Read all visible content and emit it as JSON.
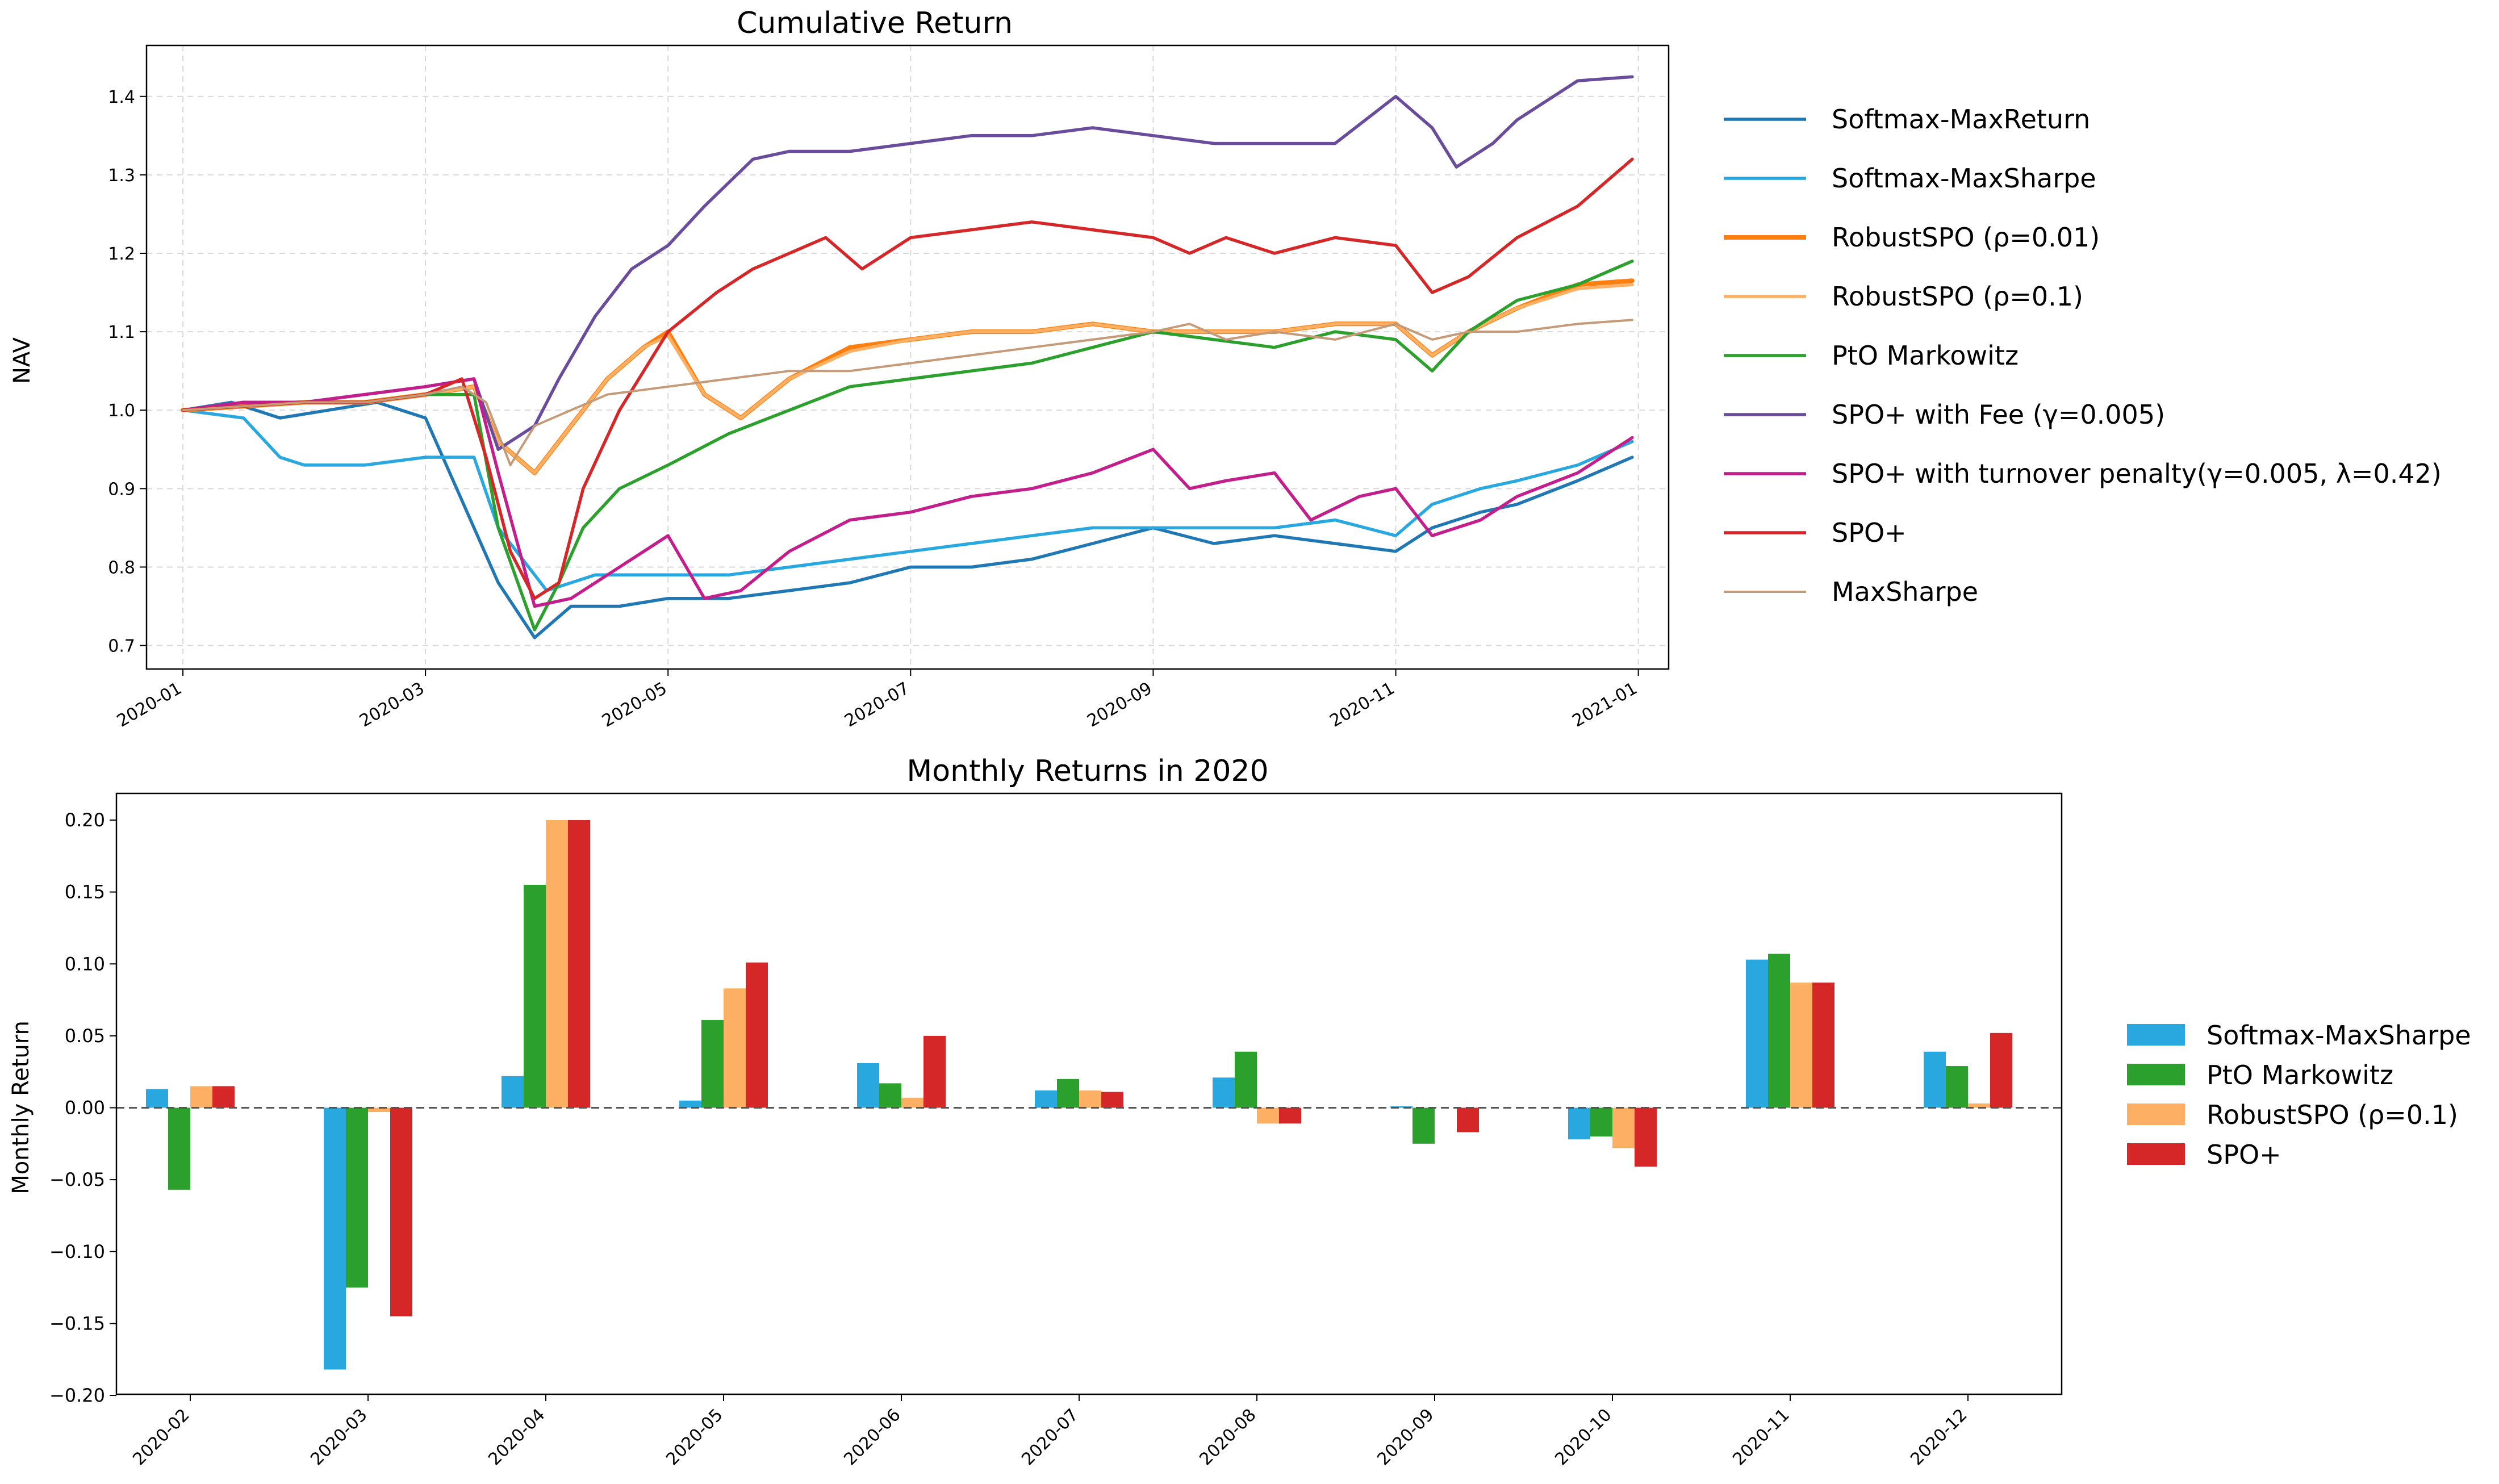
{
  "colors": {
    "softmax_maxreturn": "#1f77b4",
    "softmax_maxsharpe": "#29a8e0",
    "robust_001": "#ff7f0e",
    "robust_01": "#fdb063",
    "pto_markowitz": "#2ca02c",
    "spo_fee": "#6a4c9c",
    "spo_turnover": "#c21e8c",
    "spo_plus": "#d62728",
    "maxsharpe": "#c49a78",
    "bar_softmax": "#29a8e0",
    "bar_pto": "#2ca02c",
    "bar_robust": "#fdb063",
    "bar_spo": "#d62728"
  },
  "chart_data": [
    {
      "type": "line",
      "title": "Cumulative Return",
      "xlabel": "",
      "ylabel": "NAV",
      "xlim": [
        -0.3,
        12.25
      ],
      "ylim": [
        0.67,
        1.465
      ],
      "x_ticks": [
        0,
        2,
        4,
        6,
        8,
        10,
        12
      ],
      "x_tick_labels": [
        "2020-01",
        "2020-03",
        "2020-05",
        "2020-07",
        "2020-09",
        "2020-11",
        "2021-01"
      ],
      "y_ticks": [
        0.7,
        0.8,
        0.9,
        1.0,
        1.1,
        1.2,
        1.3,
        1.4
      ],
      "y_tick_labels": [
        "0.7",
        "0.8",
        "0.9",
        "1.0",
        "1.1",
        "1.2",
        "1.3",
        "1.4"
      ],
      "grid": true,
      "legend_position": "outside-right",
      "x_unit": "months since 2020-01-01",
      "series": [
        {
          "name": "Softmax-MaxReturn",
          "color_key": "softmax_maxreturn",
          "width": "normal",
          "x": [
            0,
            0.4,
            0.8,
            1.2,
            1.6,
            2.0,
            2.4,
            2.6,
            2.9,
            3.2,
            3.6,
            4.0,
            4.5,
            5.0,
            5.5,
            6.0,
            6.5,
            7.0,
            7.5,
            8.0,
            8.5,
            9.0,
            9.5,
            10.0,
            10.3,
            10.7,
            11.0,
            11.5,
            11.95
          ],
          "y": [
            1.0,
            1.01,
            0.99,
            1.0,
            1.01,
            0.99,
            0.85,
            0.78,
            0.71,
            0.75,
            0.75,
            0.76,
            0.76,
            0.77,
            0.78,
            0.8,
            0.8,
            0.81,
            0.83,
            0.85,
            0.83,
            0.84,
            0.83,
            0.82,
            0.85,
            0.87,
            0.88,
            0.91,
            0.94
          ]
        },
        {
          "name": "Softmax-MaxSharpe",
          "color_key": "softmax_maxsharpe",
          "width": "normal",
          "x": [
            0,
            0.5,
            0.8,
            1.0,
            1.5,
            2.0,
            2.4,
            2.6,
            3.0,
            3.4,
            4.0,
            4.5,
            5.0,
            5.5,
            6.0,
            6.5,
            7.0,
            7.5,
            8.0,
            8.5,
            9.0,
            9.5,
            10.0,
            10.3,
            10.7,
            11.0,
            11.5,
            11.95
          ],
          "y": [
            1.0,
            0.99,
            0.94,
            0.93,
            0.93,
            0.94,
            0.94,
            0.85,
            0.77,
            0.79,
            0.79,
            0.79,
            0.8,
            0.81,
            0.82,
            0.83,
            0.84,
            0.85,
            0.85,
            0.85,
            0.85,
            0.86,
            0.84,
            0.88,
            0.9,
            0.91,
            0.93,
            0.96
          ]
        },
        {
          "name": "RobustSPO (ρ=0.01)",
          "color_key": "robust_001",
          "width": "thick",
          "x": [
            0,
            0.5,
            1.0,
            1.5,
            2.0,
            2.4,
            2.6,
            2.9,
            3.2,
            3.5,
            3.8,
            4.0,
            4.3,
            4.6,
            5.0,
            5.5,
            6.0,
            6.5,
            7.0,
            7.5,
            8.0,
            8.5,
            9.0,
            9.5,
            10.0,
            10.3,
            10.6,
            11.0,
            11.5,
            11.95
          ],
          "y": [
            1.0,
            1.005,
            1.01,
            1.01,
            1.02,
            1.03,
            0.96,
            0.92,
            0.98,
            1.04,
            1.08,
            1.1,
            1.02,
            0.99,
            1.04,
            1.08,
            1.09,
            1.1,
            1.1,
            1.11,
            1.1,
            1.1,
            1.1,
            1.11,
            1.11,
            1.07,
            1.1,
            1.13,
            1.16,
            1.165
          ]
        },
        {
          "name": "RobustSPO (ρ=0.1)",
          "color_key": "robust_01",
          "width": "normal",
          "x": [
            0,
            0.5,
            1.0,
            1.5,
            2.0,
            2.4,
            2.6,
            2.9,
            3.2,
            3.5,
            3.8,
            4.0,
            4.3,
            4.6,
            5.0,
            5.5,
            6.0,
            6.5,
            7.0,
            7.5,
            8.0,
            8.5,
            9.0,
            9.5,
            10.0,
            10.3,
            10.6,
            11.0,
            11.5,
            11.95
          ],
          "y": [
            1.0,
            1.005,
            1.01,
            1.01,
            1.02,
            1.03,
            0.96,
            0.92,
            0.98,
            1.04,
            1.08,
            1.095,
            1.02,
            0.99,
            1.04,
            1.075,
            1.09,
            1.1,
            1.1,
            1.11,
            1.1,
            1.1,
            1.1,
            1.11,
            1.11,
            1.07,
            1.1,
            1.13,
            1.155,
            1.16
          ]
        },
        {
          "name": "PtO Markowitz",
          "color_key": "pto_markowitz",
          "width": "normal",
          "x": [
            0,
            0.5,
            1.0,
            1.5,
            2.0,
            2.4,
            2.6,
            2.9,
            3.1,
            3.3,
            3.6,
            4.0,
            4.5,
            5.0,
            5.5,
            6.0,
            6.5,
            7.0,
            7.5,
            8.0,
            8.5,
            9.0,
            9.5,
            10.0,
            10.3,
            10.6,
            11.0,
            11.5,
            11.95
          ],
          "y": [
            1.0,
            1.01,
            1.01,
            1.01,
            1.02,
            1.02,
            0.85,
            0.72,
            0.78,
            0.85,
            0.9,
            0.93,
            0.97,
            1.0,
            1.03,
            1.04,
            1.05,
            1.06,
            1.08,
            1.1,
            1.09,
            1.08,
            1.1,
            1.09,
            1.05,
            1.1,
            1.14,
            1.16,
            1.19
          ]
        },
        {
          "name": "SPO+ with Fee (γ=0.005)",
          "color_key": "spo_fee",
          "width": "normal",
          "x": [
            0,
            0.5,
            1.0,
            1.5,
            2.0,
            2.4,
            2.6,
            2.9,
            3.1,
            3.4,
            3.7,
            4.0,
            4.3,
            4.7,
            5.0,
            5.5,
            6.0,
            6.5,
            7.0,
            7.5,
            8.0,
            8.5,
            9.0,
            9.5,
            10.0,
            10.3,
            10.5,
            10.8,
            11.0,
            11.5,
            11.95
          ],
          "y": [
            1.0,
            1.01,
            1.01,
            1.02,
            1.03,
            1.04,
            0.95,
            0.98,
            1.04,
            1.12,
            1.18,
            1.21,
            1.26,
            1.32,
            1.33,
            1.33,
            1.34,
            1.35,
            1.35,
            1.36,
            1.35,
            1.34,
            1.34,
            1.34,
            1.4,
            1.36,
            1.31,
            1.34,
            1.37,
            1.42,
            1.425
          ]
        },
        {
          "name": "SPO+ with turnover penalty(γ=0.005, λ=0.42)",
          "color_key": "spo_turnover",
          "width": "normal",
          "x": [
            0,
            0.5,
            1.0,
            1.5,
            2.0,
            2.4,
            2.6,
            2.9,
            3.2,
            3.6,
            4.0,
            4.3,
            4.6,
            5.0,
            5.5,
            6.0,
            6.5,
            7.0,
            7.5,
            8.0,
            8.3,
            8.6,
            9.0,
            9.3,
            9.7,
            10.0,
            10.3,
            10.7,
            11.0,
            11.5,
            11.95
          ],
          "y": [
            1.0,
            1.01,
            1.01,
            1.02,
            1.03,
            1.04,
            0.92,
            0.75,
            0.76,
            0.8,
            0.84,
            0.76,
            0.77,
            0.82,
            0.86,
            0.87,
            0.89,
            0.9,
            0.92,
            0.95,
            0.9,
            0.91,
            0.92,
            0.86,
            0.89,
            0.9,
            0.84,
            0.86,
            0.89,
            0.92,
            0.965
          ]
        },
        {
          "name": "SPO+",
          "color_key": "spo_plus",
          "width": "normal",
          "x": [
            0,
            0.5,
            1.0,
            1.5,
            2.0,
            2.3,
            2.5,
            2.7,
            2.9,
            3.1,
            3.3,
            3.6,
            4.0,
            4.4,
            4.7,
            5.0,
            5.3,
            5.6,
            6.0,
            6.5,
            7.0,
            7.5,
            8.0,
            8.3,
            8.6,
            9.0,
            9.5,
            10.0,
            10.3,
            10.6,
            11.0,
            11.5,
            11.95
          ],
          "y": [
            1.0,
            1.005,
            1.01,
            1.01,
            1.02,
            1.04,
            0.94,
            0.82,
            0.76,
            0.78,
            0.9,
            1.0,
            1.1,
            1.15,
            1.18,
            1.2,
            1.22,
            1.18,
            1.22,
            1.23,
            1.24,
            1.23,
            1.22,
            1.2,
            1.22,
            1.2,
            1.22,
            1.21,
            1.15,
            1.17,
            1.22,
            1.26,
            1.32
          ]
        },
        {
          "name": "MaxSharpe",
          "color_key": "maxsharpe",
          "width": "thin",
          "x": [
            0,
            0.5,
            1.0,
            1.5,
            2.0,
            2.3,
            2.5,
            2.7,
            2.9,
            3.2,
            3.5,
            4.0,
            4.5,
            5.0,
            5.5,
            6.0,
            6.5,
            7.0,
            7.5,
            8.0,
            8.3,
            8.6,
            9.0,
            9.5,
            10.0,
            10.3,
            10.6,
            11.0,
            11.5,
            11.95
          ],
          "y": [
            1.0,
            1.005,
            1.01,
            1.01,
            1.02,
            1.03,
            1.01,
            0.93,
            0.98,
            1.0,
            1.02,
            1.03,
            1.04,
            1.05,
            1.05,
            1.06,
            1.07,
            1.08,
            1.09,
            1.1,
            1.11,
            1.09,
            1.1,
            1.09,
            1.11,
            1.09,
            1.1,
            1.1,
            1.11,
            1.115
          ]
        }
      ]
    },
    {
      "type": "bar",
      "title": "Monthly Returns in 2020",
      "xlabel": "",
      "ylabel": "Monthly Return",
      "ylim": [
        -0.2,
        0.2
      ],
      "y_ticks": [
        -0.2,
        -0.15,
        -0.1,
        -0.05,
        0.0,
        0.05,
        0.1,
        0.15,
        0.2
      ],
      "y_tick_labels": [
        "−0.20",
        "−0.15",
        "−0.10",
        "−0.05",
        "0.00",
        "0.05",
        "0.10",
        "0.15",
        "0.20"
      ],
      "zero_line": "dashed",
      "legend_position": "outside-right",
      "categories": [
        "2020-02",
        "2020-03",
        "2020-04",
        "2020-05",
        "2020-06",
        "2020-07",
        "2020-08",
        "2020-09",
        "2020-10",
        "2020-11",
        "2020-12"
      ],
      "series": [
        {
          "name": "Softmax-MaxSharpe",
          "color_key": "bar_softmax",
          "values": [
            0.013,
            -0.182,
            0.022,
            0.005,
            0.031,
            0.012,
            0.021,
            0.001,
            -0.022,
            0.103,
            0.039
          ]
        },
        {
          "name": "PtO Markowitz",
          "color_key": "bar_pto",
          "values": [
            -0.057,
            -0.125,
            0.155,
            0.061,
            0.017,
            0.02,
            0.039,
            -0.025,
            -0.02,
            0.107,
            0.029
          ]
        },
        {
          "name": "RobustSPO (ρ=0.1)",
          "color_key": "bar_robust",
          "values": [
            0.015,
            -0.003,
            0.2,
            0.083,
            0.007,
            0.012,
            -0.011,
            0.0,
            -0.028,
            0.087,
            0.003
          ]
        },
        {
          "name": "SPO+",
          "color_key": "bar_spo",
          "values": [
            0.015,
            -0.145,
            0.2,
            0.101,
            0.05,
            0.011,
            -0.011,
            -0.017,
            -0.041,
            0.087,
            0.052
          ]
        }
      ]
    }
  ]
}
